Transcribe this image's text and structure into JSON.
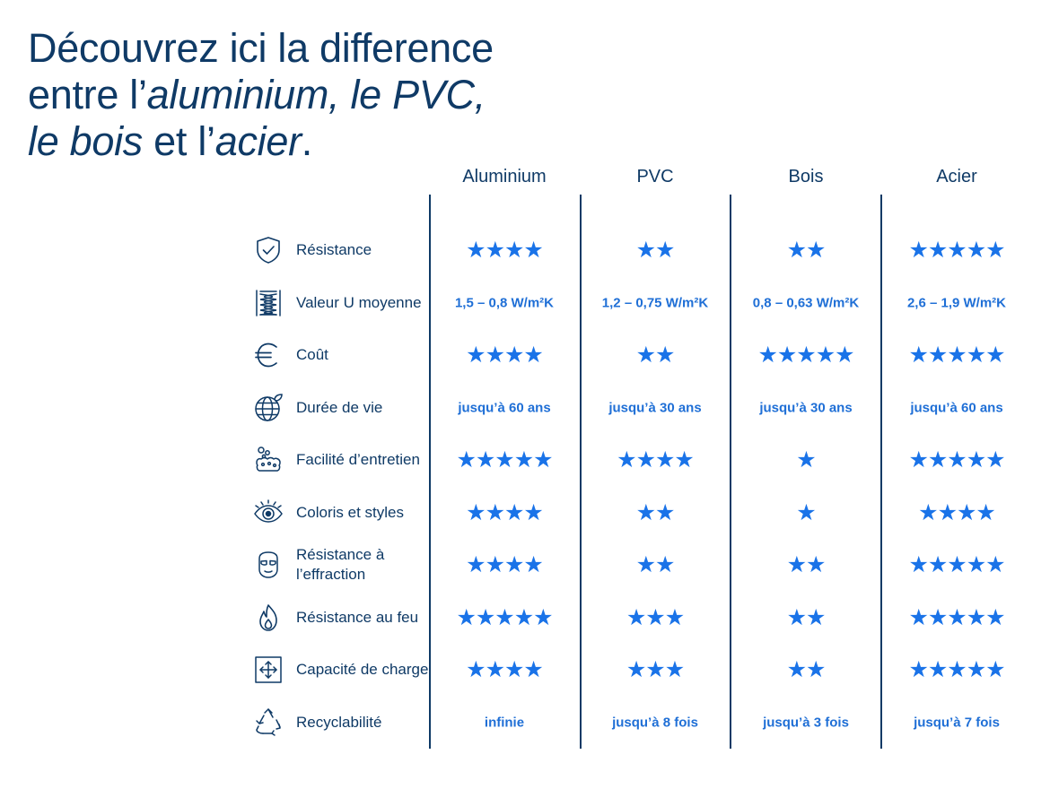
{
  "headline": {
    "line1": "Découvrez ici la difference",
    "line2_plain": "entre l’",
    "line2_italic": "aluminium, le PVC,",
    "line3_italic_a": "le bois",
    "line3_plain_a": " et l’",
    "line3_italic_b": "acier",
    "line3_plain_b": "."
  },
  "colors": {
    "navy": "#0f3a66",
    "blue": "#1a73e8"
  },
  "columns": [
    "Aluminium",
    "PVC",
    "Bois",
    "Acier"
  ],
  "rows": [
    {
      "icon": "shield-check-icon",
      "label": "Résistance",
      "cells": [
        {
          "type": "stars",
          "value": 4
        },
        {
          "type": "stars",
          "value": 2
        },
        {
          "type": "stars",
          "value": 2
        },
        {
          "type": "stars",
          "value": 5
        }
      ]
    },
    {
      "icon": "insulation-icon",
      "label": "Valeur U moyenne",
      "cells": [
        {
          "type": "text",
          "value": "1,5 – 0,8 W/m²K"
        },
        {
          "type": "text",
          "value": "1,2 – 0,75 W/m²K"
        },
        {
          "type": "text",
          "value": "0,8 – 0,63 W/m²K"
        },
        {
          "type": "text",
          "value": "2,6 – 1,9 W/m²K"
        }
      ]
    },
    {
      "icon": "euro-icon",
      "label": "Coût",
      "cells": [
        {
          "type": "stars",
          "value": 4
        },
        {
          "type": "stars",
          "value": 2
        },
        {
          "type": "stars",
          "value": 5
        },
        {
          "type": "stars",
          "value": 5
        }
      ]
    },
    {
      "icon": "globe-leaf-icon",
      "label": "Durée de vie",
      "cells": [
        {
          "type": "text",
          "value": "jusqu’à 60 ans"
        },
        {
          "type": "text",
          "value": "jusqu’à 30 ans"
        },
        {
          "type": "text",
          "value": "jusqu’à 30 ans"
        },
        {
          "type": "text",
          "value": "jusqu’à 60 ans"
        }
      ]
    },
    {
      "icon": "sponge-icon",
      "label": "Facilité d’entretien",
      "cells": [
        {
          "type": "stars",
          "value": 5
        },
        {
          "type": "stars",
          "value": 4
        },
        {
          "type": "stars",
          "value": 1
        },
        {
          "type": "stars",
          "value": 5
        }
      ]
    },
    {
      "icon": "eye-icon",
      "label": "Coloris et styles",
      "cells": [
        {
          "type": "stars",
          "value": 4
        },
        {
          "type": "stars",
          "value": 2
        },
        {
          "type": "stars",
          "value": 1
        },
        {
          "type": "stars",
          "value": 4
        }
      ]
    },
    {
      "icon": "burglar-mask-icon",
      "label": "Résistance à l’effraction",
      "cells": [
        {
          "type": "stars",
          "value": 4
        },
        {
          "type": "stars",
          "value": 2
        },
        {
          "type": "stars",
          "value": 2
        },
        {
          "type": "stars",
          "value": 5
        }
      ]
    },
    {
      "icon": "flame-icon",
      "label": "Résistance au feu",
      "cells": [
        {
          "type": "stars",
          "value": 5
        },
        {
          "type": "stars",
          "value": 3
        },
        {
          "type": "stars",
          "value": 2
        },
        {
          "type": "stars",
          "value": 5
        }
      ]
    },
    {
      "icon": "load-capacity-icon",
      "label": "Capacité de charge",
      "cells": [
        {
          "type": "stars",
          "value": 4
        },
        {
          "type": "stars",
          "value": 3
        },
        {
          "type": "stars",
          "value": 2
        },
        {
          "type": "stars",
          "value": 5
        }
      ]
    },
    {
      "icon": "recycle-icon",
      "label": "Recyclabilité",
      "cells": [
        {
          "type": "text",
          "value": "infinie"
        },
        {
          "type": "text",
          "value": "jusqu’à 8 fois"
        },
        {
          "type": "text",
          "value": "jusqu’à 3 fois"
        },
        {
          "type": "text",
          "value": "jusqu’à 7 fois"
        }
      ]
    }
  ]
}
